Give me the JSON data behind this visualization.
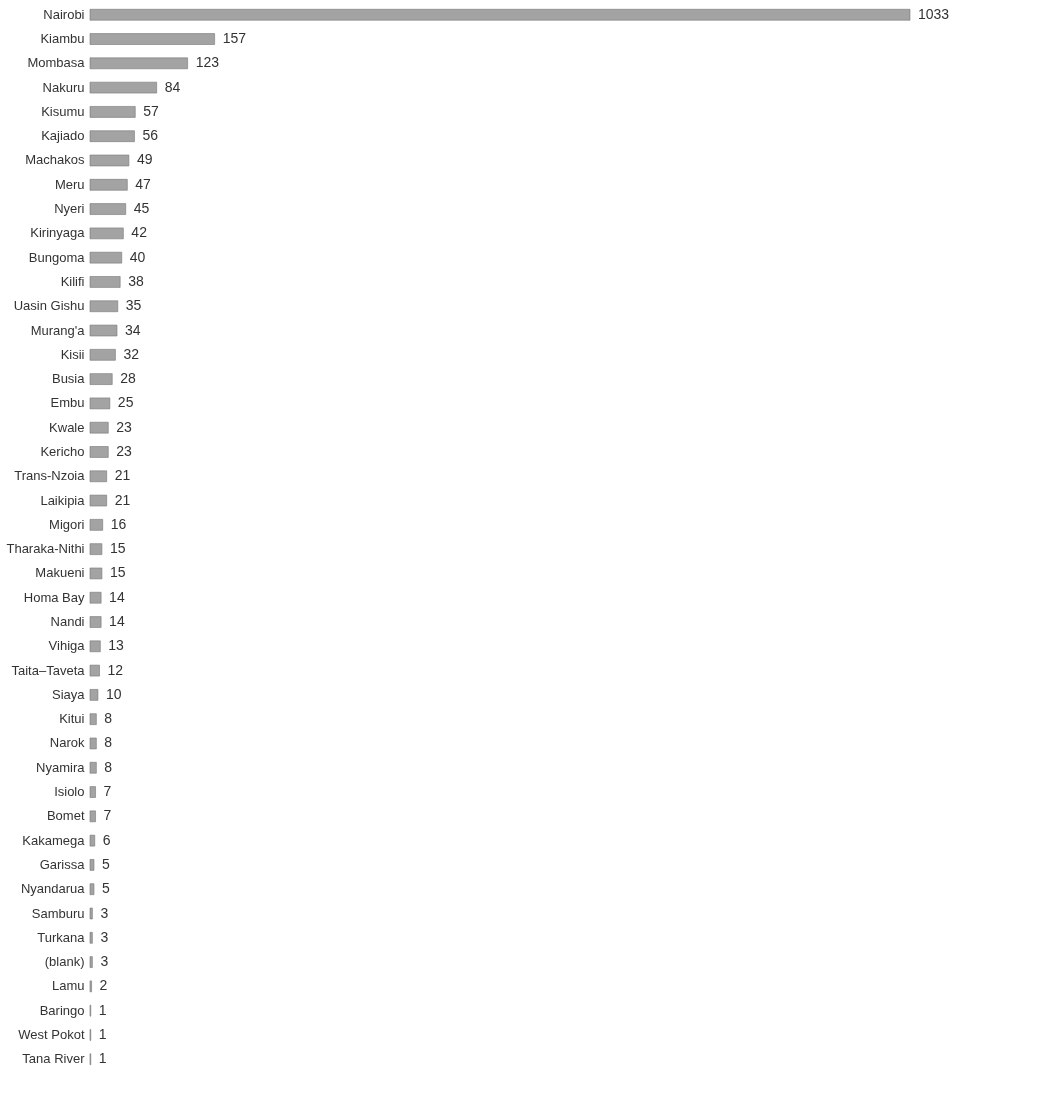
{
  "chart_data": {
    "type": "bar",
    "orientation": "horizontal",
    "data_labels": true,
    "grid": false,
    "color": "#a3a3a3",
    "categories": [
      "Nairobi",
      "Kiambu",
      "Mombasa",
      "Nakuru",
      "Kisumu",
      "Kajiado",
      "Machakos",
      "Meru",
      "Nyeri",
      "Kirinyaga",
      "Bungoma",
      "Kilifi",
      "Uasin Gishu",
      "Murang'a",
      "Kisii",
      "Busia",
      "Embu",
      "Kwale",
      "Kericho",
      "Trans-Nzoia",
      "Laikipia",
      "Migori",
      "Tharaka-Nithi",
      "Makueni",
      "Homa Bay",
      "Nandi",
      "Vihiga",
      "Taita–Taveta",
      "Siaya",
      "Kitui",
      "Narok",
      "Nyamira",
      "Isiolo",
      "Bomet",
      "Kakamega",
      "Garissa",
      "Nyandarua",
      "Samburu",
      "Turkana",
      "(blank)",
      "Lamu",
      "Baringo",
      "West Pokot",
      "Tana River"
    ],
    "values": [
      1033,
      157,
      123,
      84,
      57,
      56,
      49,
      47,
      45,
      42,
      40,
      38,
      35,
      34,
      32,
      28,
      25,
      23,
      23,
      21,
      21,
      16,
      15,
      15,
      14,
      14,
      13,
      12,
      10,
      8,
      8,
      8,
      7,
      7,
      6,
      5,
      5,
      3,
      3,
      3,
      2,
      1,
      1,
      1
    ]
  }
}
